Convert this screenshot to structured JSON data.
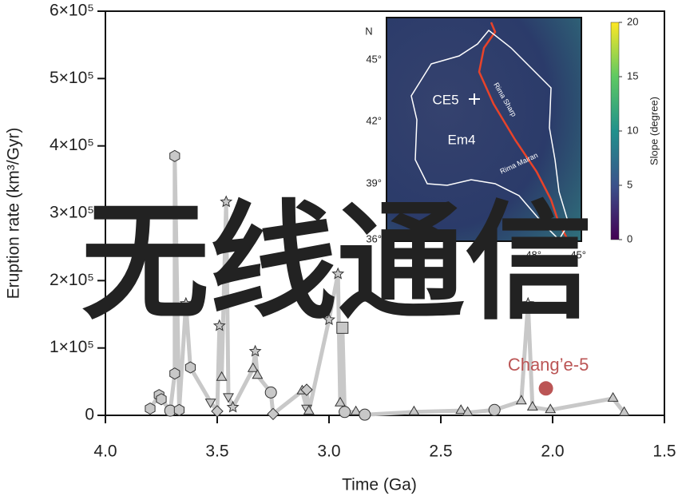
{
  "chart_data": {
    "type": "line",
    "x_label": "Time (Ga)",
    "y_label": "Eruption rate (km³/Gyr)",
    "xlim": [
      4.0,
      1.5
    ],
    "xticks": [
      {
        "value": 4.0,
        "label": "4.0"
      },
      3.5,
      {
        "value": 3.0,
        "label": "3.0"
      },
      2.5,
      {
        "value": 2.0,
        "label": "2.0"
      },
      1.5
    ],
    "ylim": [
      0,
      600000
    ],
    "yticks": [
      {
        "value": 0,
        "label": "0"
      },
      {
        "value": 100000,
        "label": "1×10⁵"
      },
      {
        "value": 200000,
        "label": "2×10⁵"
      },
      {
        "value": 300000,
        "label": "3×10⁵"
      },
      {
        "value": 400000,
        "label": "4×10⁵"
      },
      {
        "value": 500000,
        "label": "5×10⁵"
      },
      {
        "value": 600000,
        "label": "6×10⁵"
      }
    ],
    "series": [
      {
        "color": "#c8c8c8",
        "x": [
          3.8,
          3.76,
          3.75,
          3.71,
          3.69,
          3.69,
          3.67,
          3.64,
          3.62,
          3.53,
          3.5,
          3.49,
          3.48,
          3.46,
          3.45,
          3.43,
          3.34,
          3.33,
          3.32,
          3.26,
          3.25,
          3.12,
          3.1,
          3.1,
          3.09,
          3.0,
          2.96,
          2.95,
          2.94,
          2.93,
          2.88,
          2.84,
          2.62,
          2.41,
          2.38,
          2.26,
          2.14,
          2.11,
          2.09,
          2.01,
          1.73,
          1.68
        ],
        "values": [
          10000,
          30000,
          24000,
          7000,
          62000,
          385000,
          8000,
          166000,
          71000,
          20000,
          6000,
          133000,
          56000,
          317000,
          28000,
          12000,
          69000,
          95000,
          59000,
          34000,
          2000,
          36000,
          11000,
          38000,
          6000,
          142000,
          210000,
          18000,
          130000,
          5000,
          5000,
          1000,
          5000,
          7000,
          4000,
          8000,
          21000,
          166000,
          12000,
          8000,
          25000,
          4000
        ],
        "markers": [
          "hexagon",
          "hexagon",
          "hexagon",
          "circle",
          "hexagon",
          "hexagon",
          "hexagon",
          "star",
          "hexagon",
          "triangle-down",
          "diamond",
          "star",
          "triangle",
          "star",
          "triangle-down",
          "star",
          "triangle",
          "star",
          "triangle",
          "circle",
          "diamond",
          "triangle",
          "triangle-down",
          "diamond",
          "triangle",
          "star",
          "star",
          "triangle",
          "square",
          "circle",
          "triangle",
          "circle",
          "triangle",
          "triangle",
          "triangle",
          "circle",
          "triangle",
          "star",
          "triangle",
          "triangle",
          "triangle",
          "triangle"
        ]
      }
    ],
    "annotations": [
      {
        "text": "Chang’e-5",
        "x": 2.03,
        "y": 40000,
        "color": "#bb5555"
      }
    ],
    "inset": {
      "north": "N",
      "lat_labels": [
        "45°",
        "42°",
        "39°",
        "36°"
      ],
      "lon_labels": [
        "-48°",
        "-45°"
      ],
      "places": [
        "CE5",
        "Em4"
      ],
      "rilles": [
        "Rima Sharp",
        "Rima Mairan"
      ],
      "colorbar_label": "Slope (degree)",
      "colorbar_lim": [
        0,
        20
      ],
      "colorbar_ticks": [
        0,
        5,
        10,
        15,
        20
      ]
    }
  },
  "overlay_text": "无线通信",
  "overlay_color": "#0000ee"
}
